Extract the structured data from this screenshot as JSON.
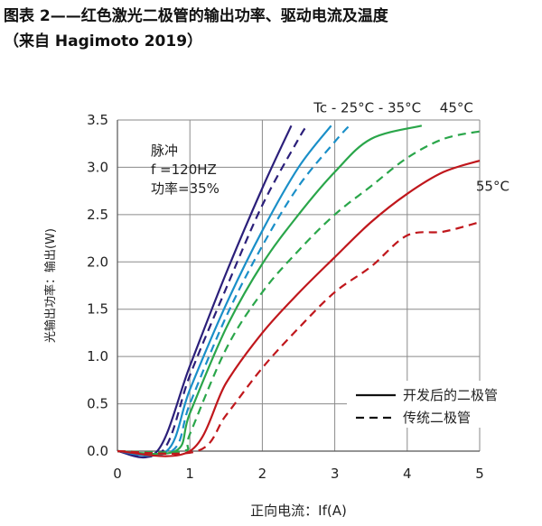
{
  "figure": {
    "title": "图表 2——红色激光二极管的输出功率、驱动电流及温度",
    "subtitle": "（来自 Hagimoto 2019）"
  },
  "chart_data": {
    "type": "line",
    "xlabel": "正向电流：If(A)",
    "ylabel": "光输出功率：输出(W)",
    "xlim": [
      0,
      5
    ],
    "ylim": [
      0,
      3.5
    ],
    "x_ticks": [
      "0",
      "1",
      "2",
      "3",
      "4",
      "5"
    ],
    "y_ticks": [
      "0.0",
      "0.5",
      "1.0",
      "1.5",
      "2.0",
      "2.5",
      "3.0",
      "3.5"
    ],
    "grid": true,
    "annotation_box": [
      "脉冲",
      "f =120HZ",
      "功率=35%"
    ],
    "temperature_labels": [
      {
        "text": "Tc - 25°C - 35°C",
        "at": [
          3.45,
          3.58
        ]
      },
      {
        "text": "45°C",
        "at": [
          4.68,
          3.58
        ]
      },
      {
        "text": "55°C",
        "at": [
          5.18,
          2.75
        ]
      }
    ],
    "legend": {
      "placement": "bottom-right",
      "entries": [
        {
          "label": "开发后的二极管",
          "style": "solid"
        },
        {
          "label": "传统二极管",
          "style": "dashed"
        }
      ]
    },
    "colors": {
      "navy": "#2b1f7a",
      "blue": "#1a8fc8",
      "green": "#2aa64a",
      "red": "#c0171c"
    },
    "series": [
      {
        "temperature": "25°C",
        "style": "solid",
        "color": "#2b1f7a",
        "points": [
          [
            0,
            0
          ],
          [
            0.55,
            0
          ],
          [
            1.0,
            0.9
          ],
          [
            1.5,
            1.88
          ],
          [
            2.0,
            2.78
          ],
          [
            2.4,
            3.44
          ]
        ]
      },
      {
        "temperature": "25°C",
        "style": "dashed",
        "color": "#2b1f7a",
        "points": [
          [
            0,
            0
          ],
          [
            0.62,
            0
          ],
          [
            1.0,
            0.8
          ],
          [
            1.5,
            1.72
          ],
          [
            2.0,
            2.6
          ],
          [
            2.5,
            3.3
          ],
          [
            2.6,
            3.42
          ]
        ]
      },
      {
        "temperature": "35°C",
        "style": "solid",
        "color": "#1a8fc8",
        "points": [
          [
            0,
            0
          ],
          [
            0.68,
            0
          ],
          [
            1.0,
            0.65
          ],
          [
            1.5,
            1.55
          ],
          [
            2.0,
            2.33
          ],
          [
            2.5,
            3.0
          ],
          [
            2.95,
            3.44
          ]
        ]
      },
      {
        "temperature": "35°C",
        "style": "dashed",
        "color": "#1a8fc8",
        "points": [
          [
            0,
            0
          ],
          [
            0.75,
            0
          ],
          [
            1.0,
            0.5
          ],
          [
            1.5,
            1.42
          ],
          [
            2.0,
            2.17
          ],
          [
            2.5,
            2.8
          ],
          [
            3.0,
            3.27
          ],
          [
            3.2,
            3.44
          ]
        ]
      },
      {
        "temperature": "45°C",
        "style": "solid",
        "color": "#2aa64a",
        "points": [
          [
            0,
            0
          ],
          [
            0.8,
            0
          ],
          [
            1.0,
            0.4
          ],
          [
            1.5,
            1.3
          ],
          [
            2.0,
            1.98
          ],
          [
            2.5,
            2.5
          ],
          [
            3.0,
            2.95
          ],
          [
            3.5,
            3.3
          ],
          [
            4.2,
            3.44
          ]
        ]
      },
      {
        "temperature": "45°C",
        "style": "dashed",
        "color": "#2aa64a",
        "points": [
          [
            0,
            0
          ],
          [
            0.9,
            0
          ],
          [
            1.0,
            0.18
          ],
          [
            1.5,
            1.08
          ],
          [
            2.0,
            1.68
          ],
          [
            2.5,
            2.12
          ],
          [
            3.0,
            2.5
          ],
          [
            3.5,
            2.8
          ],
          [
            4.0,
            3.1
          ],
          [
            4.5,
            3.3
          ],
          [
            5.0,
            3.38
          ]
        ]
      },
      {
        "temperature": "55°C",
        "style": "solid",
        "color": "#c0171c",
        "points": [
          [
            0,
            0
          ],
          [
            1.0,
            0
          ],
          [
            1.5,
            0.72
          ],
          [
            2.0,
            1.25
          ],
          [
            2.5,
            1.67
          ],
          [
            3.0,
            2.05
          ],
          [
            3.5,
            2.42
          ],
          [
            4.0,
            2.72
          ],
          [
            4.5,
            2.95
          ],
          [
            5.0,
            3.07
          ]
        ]
      },
      {
        "temperature": "55°C",
        "style": "dashed",
        "color": "#c0171c",
        "points": [
          [
            0,
            0
          ],
          [
            1.1,
            0
          ],
          [
            1.5,
            0.38
          ],
          [
            2.0,
            0.88
          ],
          [
            2.5,
            1.3
          ],
          [
            3.0,
            1.68
          ],
          [
            3.5,
            1.95
          ],
          [
            4.0,
            2.28
          ],
          [
            4.5,
            2.32
          ],
          [
            5.0,
            2.42
          ]
        ]
      }
    ]
  }
}
